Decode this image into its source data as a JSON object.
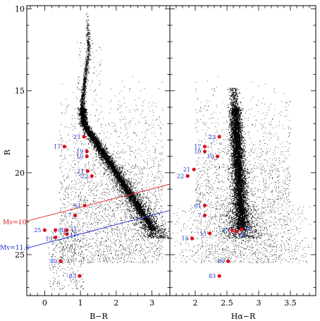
{
  "chart_data": [
    {
      "type": "scatter",
      "title": "",
      "xlabel": "B−R",
      "ylabel": "R",
      "xlim": [
        -0.5,
        3.5
      ],
      "ylim": [
        27.5,
        9.8
      ],
      "y_inverted": true,
      "xticks": [
        0,
        1,
        2,
        3
      ],
      "yticks": [
        10,
        15,
        20,
        25
      ],
      "grid": false,
      "colors": {
        "stars": "#000000",
        "labeled": "#e0101a",
        "labels": "#2233cc",
        "mv10": "#e02020",
        "mv116": "#2030d0"
      },
      "background_population": "dense cloud of field and cluster stars tracing a giant branch (B−R ≈ 1–1.5 at R ≈ 10–16) that bends into a main sequence running to B−R ≈ 2.8 at R ≈ 23",
      "lines": [
        {
          "label": "Mv=10",
          "x": [
            -0.5,
            3.5
          ],
          "y": [
            22.95,
            20.7
          ]
        },
        {
          "label": "Mv=11.6",
          "x": [
            -0.5,
            3.5
          ],
          "y": [
            24.6,
            22.3
          ]
        }
      ],
      "labeled_stars": [
        {
          "id": "23",
          "x": 1.1,
          "y": 17.8
        },
        {
          "id": "17",
          "x": 0.55,
          "y": 18.4
        },
        {
          "id": "19",
          "x": 1.18,
          "y": 18.7
        },
        {
          "id": "10",
          "x": 1.18,
          "y": 19.0
        },
        {
          "id": "21",
          "x": 1.2,
          "y": 19.9
        },
        {
          "id": "22",
          "x": 1.32,
          "y": 20.2
        },
        {
          "id": "61",
          "x": 1.12,
          "y": 22.0
        },
        {
          "id": "7",
          "x": 0.85,
          "y": 22.6
        },
        {
          "id": "25",
          "x": 0.0,
          "y": 23.5
        },
        {
          "id": "60",
          "x": 0.3,
          "y": 23.5
        },
        {
          "id": "31",
          "x": 0.62,
          "y": 23.5
        },
        {
          "id": "11",
          "x": 0.62,
          "y": 23.75
        },
        {
          "id": "13",
          "x": 0.3,
          "y": 23.95
        },
        {
          "id": "80",
          "x": 0.45,
          "y": 25.4
        },
        {
          "id": "83",
          "x": 0.98,
          "y": 26.3
        }
      ]
    },
    {
      "type": "scatter",
      "title": "",
      "xlabel": "Hα−R",
      "ylabel": "",
      "xlim": [
        1.6,
        3.9
      ],
      "ylim": [
        27.5,
        9.8
      ],
      "y_inverted": true,
      "xticks": [
        2,
        2.5,
        3,
        3.5
      ],
      "yticks": [
        10,
        15,
        20,
        25
      ],
      "grid": false,
      "background_population": "dense cloud of stars in a narrow near-vertical sequence at Hα−R ≈ 2.6–2.8 from R ≈ 15 to 24, widening and scattering toward faint magnitudes",
      "labeled_stars": [
        {
          "id": "23",
          "x": 2.38,
          "y": 17.8
        },
        {
          "id": "17",
          "x": 2.15,
          "y": 18.4
        },
        {
          "id": "19",
          "x": 2.15,
          "y": 18.7
        },
        {
          "id": "10",
          "x": 2.35,
          "y": 19.0
        },
        {
          "id": "21",
          "x": 1.98,
          "y": 19.8
        },
        {
          "id": "22",
          "x": 1.88,
          "y": 20.2
        },
        {
          "id": "61",
          "x": 2.15,
          "y": 22.0
        },
        {
          "id": "7",
          "x": 2.15,
          "y": 22.6
        },
        {
          "id": "11",
          "x": 2.23,
          "y": 23.7
        },
        {
          "id": "25",
          "x": 2.58,
          "y": 23.5
        },
        {
          "id": "60",
          "x": 2.65,
          "y": 23.6
        },
        {
          "id": "31",
          "x": 2.73,
          "y": 23.45
        },
        {
          "id": "13",
          "x": 1.95,
          "y": 24.0
        },
        {
          "id": "80",
          "x": 2.52,
          "y": 25.4
        },
        {
          "id": "83",
          "x": 2.38,
          "y": 26.3
        }
      ]
    }
  ],
  "annotations": {
    "mv10": "Mv=10",
    "mv116": "Mv=11.6"
  }
}
